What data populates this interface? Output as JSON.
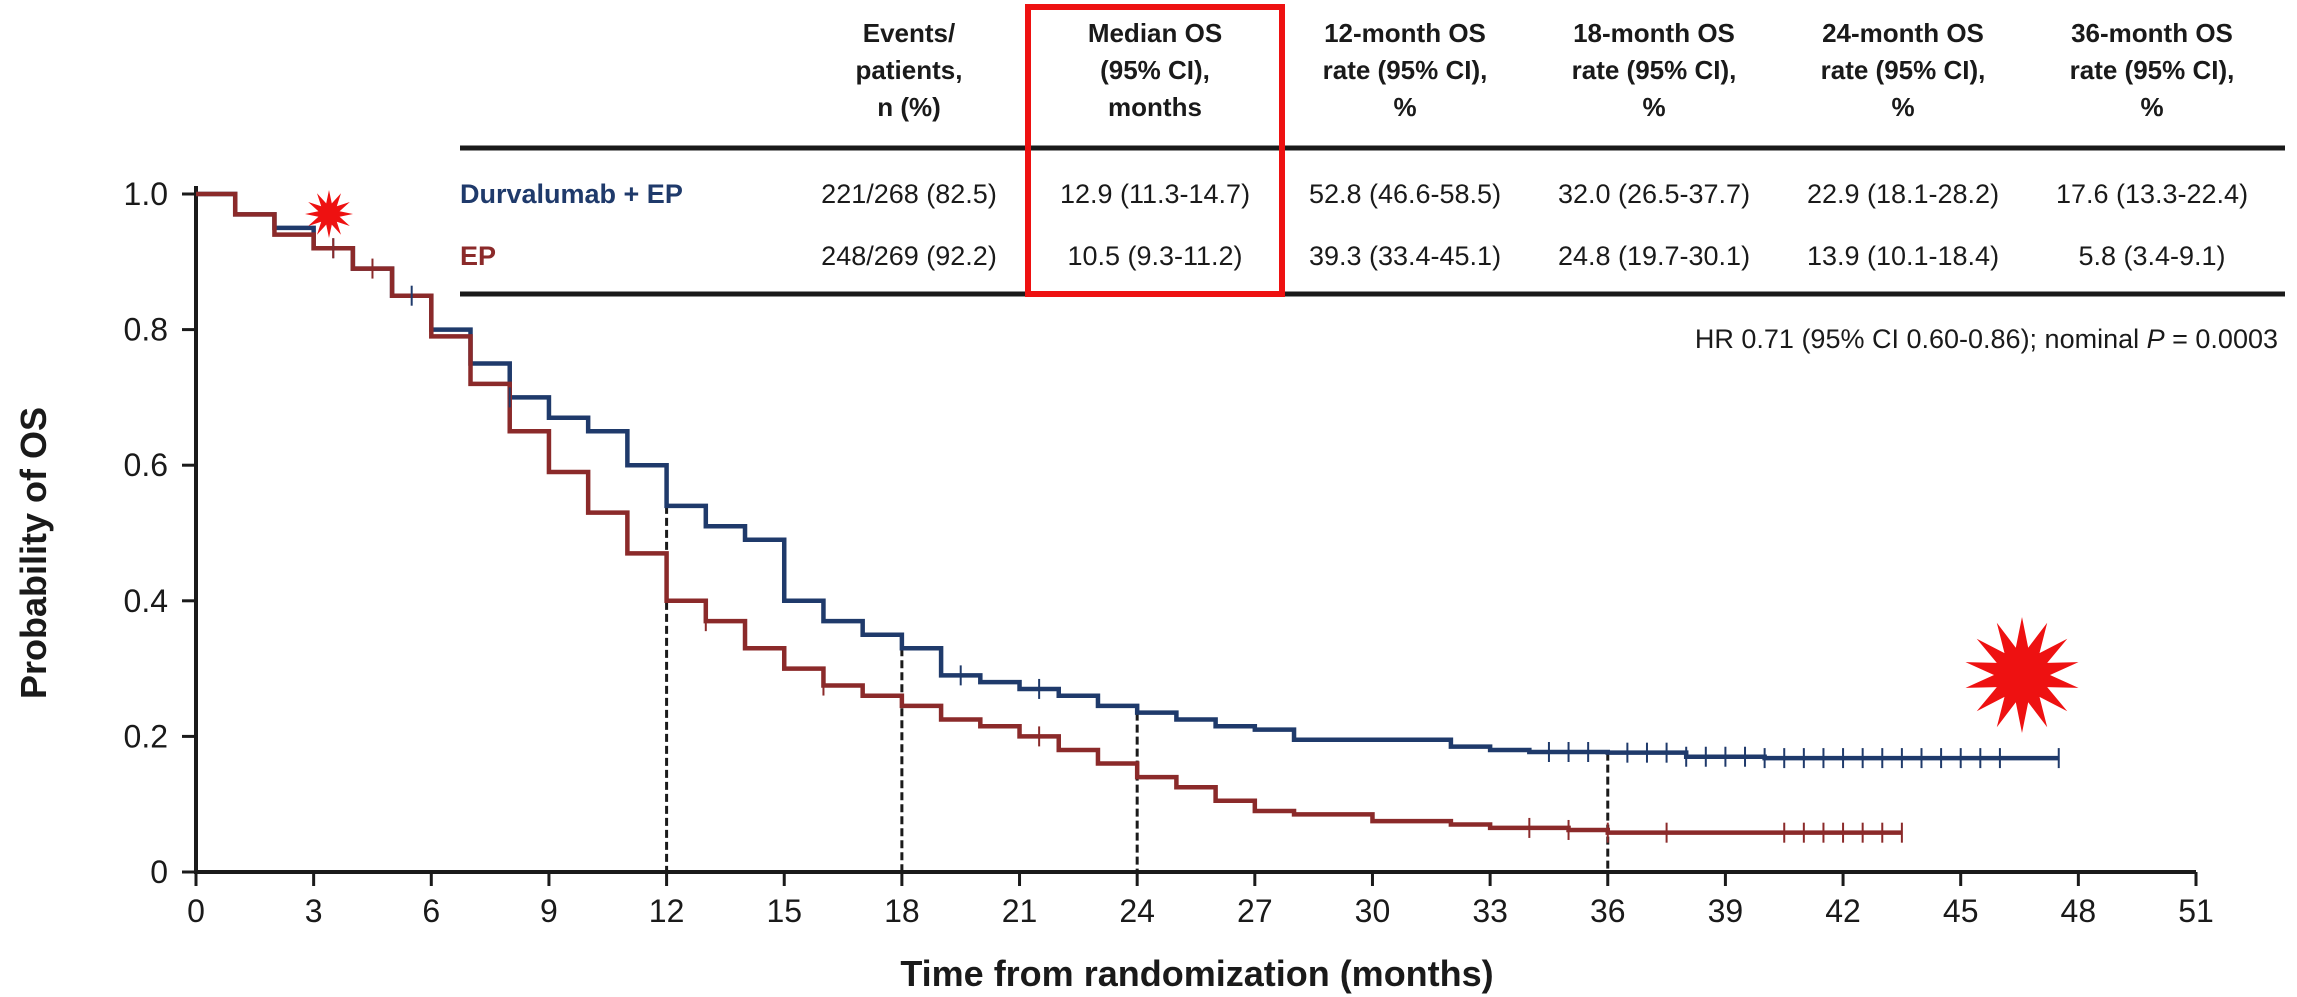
{
  "chart_data": {
    "type": "line",
    "subtype": "kaplan-meier",
    "xlabel": "Time from randomization (months)",
    "ylabel": "Probability of OS",
    "xlim": [
      0,
      51
    ],
    "ylim": [
      0,
      1.0
    ],
    "x_ticks": [
      0,
      3,
      6,
      9,
      12,
      15,
      18,
      21,
      24,
      27,
      30,
      33,
      36,
      39,
      42,
      45,
      48,
      51
    ],
    "y_ticks": [
      0,
      0.2,
      0.4,
      0.6,
      0.8,
      1.0
    ],
    "y_tick_labels": [
      "0",
      "0.2",
      "0.4",
      "0.6",
      "0.8",
      "1.0"
    ],
    "grid": false,
    "reference_lines_x": [
      12,
      18,
      24,
      36
    ],
    "series": [
      {
        "name": "Durvalumab + EP",
        "color": "#1f3a6b",
        "x": [
          0,
          1,
          2,
          3,
          4,
          5,
          6,
          7,
          8,
          9,
          10,
          11,
          12,
          13,
          14,
          15,
          16,
          17,
          18,
          19,
          20,
          21,
          22,
          23,
          24,
          25,
          26,
          27,
          28,
          30,
          32,
          33,
          34,
          36,
          38,
          40,
          44,
          47.5
        ],
        "y": [
          1.0,
          0.97,
          0.95,
          0.92,
          0.89,
          0.85,
          0.8,
          0.75,
          0.7,
          0.67,
          0.65,
          0.6,
          0.54,
          0.51,
          0.49,
          0.4,
          0.37,
          0.35,
          0.33,
          0.29,
          0.28,
          0.27,
          0.26,
          0.245,
          0.235,
          0.225,
          0.215,
          0.21,
          0.195,
          0.195,
          0.185,
          0.18,
          0.177,
          0.176,
          0.17,
          0.168,
          0.168,
          0.168
        ],
        "censor_x": [
          3.5,
          5.5,
          8,
          19.5,
          21.5,
          34.5,
          35,
          35.5,
          36.5,
          37,
          37.5,
          38,
          38.5,
          39,
          39.5,
          40,
          40.5,
          41,
          41.5,
          42,
          42.5,
          43,
          43.5,
          44,
          44.5,
          45,
          45.5,
          46,
          47.5
        ]
      },
      {
        "name": "EP",
        "color": "#8b2a2a",
        "x": [
          0,
          1,
          2,
          3,
          4,
          5,
          6,
          7,
          8,
          9,
          10,
          11,
          12,
          13,
          14,
          15,
          16,
          17,
          18,
          19,
          20,
          21,
          22,
          23,
          24,
          25,
          26,
          27,
          28,
          30,
          32,
          33,
          35,
          36,
          40,
          43.5
        ],
        "y": [
          1.0,
          0.97,
          0.94,
          0.92,
          0.89,
          0.85,
          0.79,
          0.72,
          0.65,
          0.59,
          0.53,
          0.47,
          0.4,
          0.37,
          0.33,
          0.3,
          0.275,
          0.26,
          0.245,
          0.225,
          0.215,
          0.2,
          0.18,
          0.16,
          0.14,
          0.125,
          0.105,
          0.09,
          0.085,
          0.075,
          0.07,
          0.065,
          0.062,
          0.058,
          0.058,
          0.058
        ],
        "censor_x": [
          3.5,
          4.5,
          13,
          16,
          21.5,
          34,
          35,
          36,
          37.5,
          40.5,
          41,
          41.5,
          42,
          42.5,
          43,
          43.5
        ]
      }
    ],
    "table": {
      "headers": [
        [
          "Events/",
          "patients,",
          "n (%)"
        ],
        [
          "Median OS",
          "(95% CI),",
          "months"
        ],
        [
          "12-month OS",
          "rate (95% CI),",
          "%"
        ],
        [
          "18-month OS",
          "rate (95% CI),",
          "%"
        ],
        [
          "24-month OS",
          "rate (95% CI),",
          "%"
        ],
        [
          "36-month OS",
          "rate (95% CI),",
          "%"
        ]
      ],
      "rows": [
        {
          "label": "Durvalumab + EP",
          "color": "#1f3a6b",
          "cells": [
            "221/268 (82.5)",
            "12.9 (11.3-14.7)",
            "52.8 (46.6-58.5)",
            "32.0 (26.5-37.7)",
            "22.9 (18.1-28.2)",
            "17.6 (13.3-22.4)"
          ]
        },
        {
          "label": "EP",
          "color": "#8b2a2a",
          "cells": [
            "248/269 (92.2)",
            "10.5 (9.3-11.2)",
            "39.3 (33.4-45.1)",
            "24.8 (19.7-30.1)",
            "13.9 (10.1-18.4)",
            "5.8 (3.4-9.1)"
          ]
        }
      ],
      "highlighted_column": 1,
      "highlight_color": "#ee1111"
    },
    "annotation": {
      "hr_prefix": "HR 0.71 (95% CI 0.60-0.86); nominal ",
      "p_symbol": "P",
      "hr_suffix": " = 0.0003"
    },
    "markers": {
      "color": "#ee1111",
      "shape": "starburst"
    }
  }
}
